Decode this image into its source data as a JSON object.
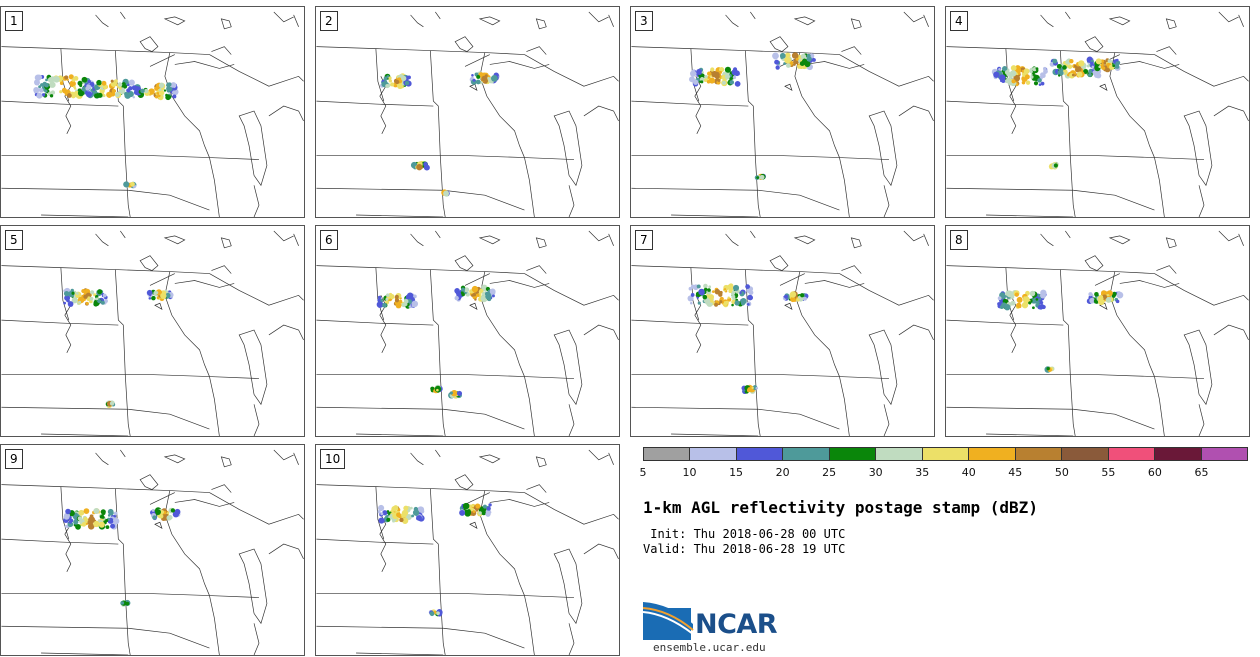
{
  "members": [
    "1",
    "2",
    "3",
    "4",
    "5",
    "6",
    "7",
    "8",
    "9",
    "10"
  ],
  "colorbar": {
    "ticks": [
      "5",
      "10",
      "15",
      "20",
      "25",
      "30",
      "35",
      "40",
      "45",
      "50",
      "55",
      "60",
      "65"
    ],
    "colors": [
      "#a0a0a0",
      "#b8c0e8",
      "#5058d8",
      "#4e9a9a",
      "#0a860a",
      "#c0dcc0",
      "#ece068",
      "#f0b020",
      "#b88030",
      "#8a5a3a",
      "#f0507a",
      "#6a1838",
      "#b050b0"
    ]
  },
  "title": "1-km AGL reflectivity postage stamp (dBZ)",
  "init": " Init: Thu 2018-06-28 00 UTC",
  "valid": "Valid: Thu 2018-06-28 19 UTC",
  "logo": {
    "name": "NCAR",
    "url": "ensemble.ucar.edu"
  }
}
